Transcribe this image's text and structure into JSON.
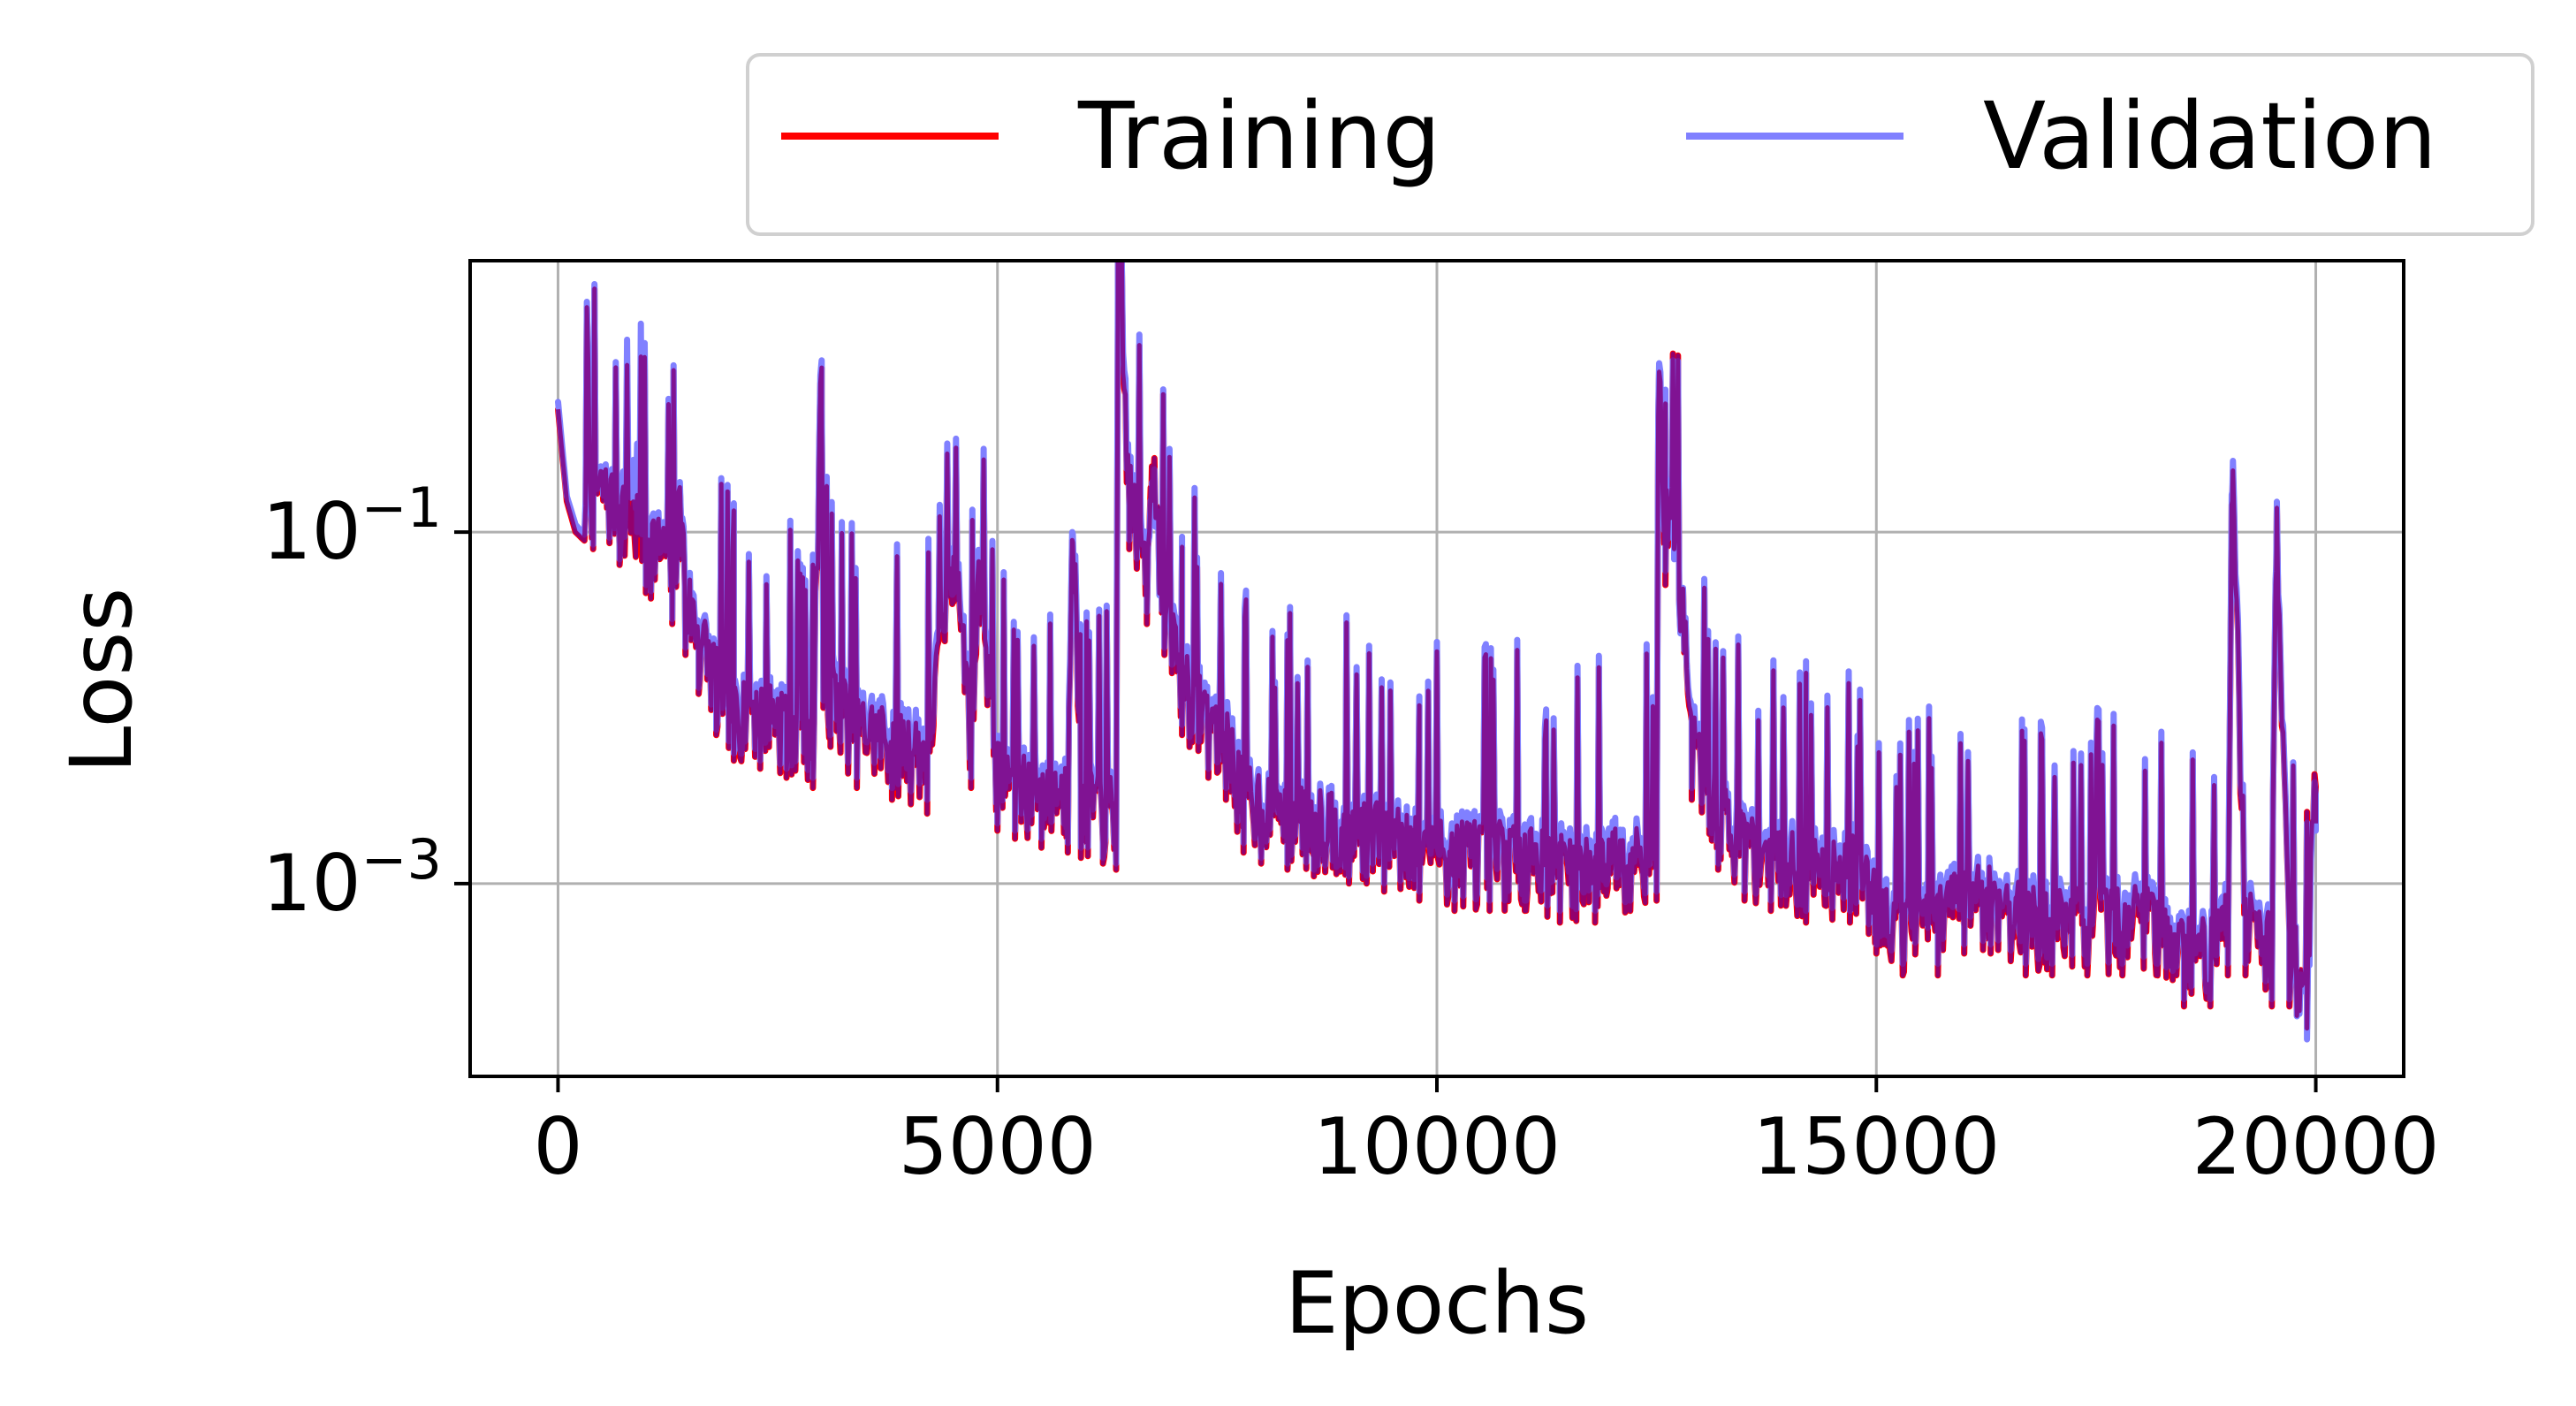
{
  "chart_data": {
    "type": "line",
    "xlabel": "Epochs",
    "ylabel": "Loss",
    "x_ticks": [
      0,
      5000,
      10000,
      15000,
      20000
    ],
    "x_tick_labels": [
      "0",
      "5000",
      "10000",
      "15000",
      "20000"
    ],
    "xlim": [
      -1000,
      21000
    ],
    "y_scale": "log",
    "ylim": [
      8e-05,
      3.5
    ],
    "y_ticks": [
      0.1,
      0.001
    ],
    "y_tick_labels": [
      {
        "base": "10",
        "exp": "−1"
      },
      {
        "base": "10",
        "exp": "−3"
      }
    ],
    "grid": true,
    "legend": {
      "placement": "top-right, outside plot",
      "columns": 2
    },
    "series": [
      {
        "name": "Training",
        "color": "#ff0000",
        "x": [
          0,
          100,
          200,
          400,
          700,
          1000,
          1300,
          1400,
          1450,
          1600,
          1800,
          2000,
          2300,
          2600,
          2900,
          3000,
          3020,
          3100,
          3400,
          3800,
          4200,
          4500,
          4700,
          4800,
          5000,
          5200,
          5500,
          5800,
          5850,
          5950,
          6200,
          6350,
          6370,
          6500,
          6700,
          6750,
          6900,
          7100,
          7400,
          7600,
          7800,
          8000,
          8300,
          8600,
          9000,
          9400,
          9800,
          10200,
          10600,
          11000,
          11400,
          11800,
          12200,
          12500,
          12520,
          12600,
          12700,
          12900,
          13200,
          13500,
          13800,
          14200,
          14700,
          15000,
          15300,
          15700,
          16000,
          16300,
          16700,
          17000,
          17400,
          17800,
          18200,
          18500,
          18800,
          19000,
          19050,
          19200,
          19500,
          19550,
          19700,
          19900,
          20000
        ],
        "y": [
          0.5,
          0.15,
          0.1,
          0.08,
          0.065,
          0.045,
          0.03,
          0.07,
          0.02,
          0.012,
          0.007,
          0.005,
          0.0045,
          0.004,
          0.0035,
          0.5,
          0.01,
          0.006,
          0.0035,
          0.003,
          0.0025,
          0.04,
          0.0035,
          0.03,
          0.002,
          0.0018,
          0.0016,
          0.0015,
          0.09,
          0.0014,
          0.0013,
          0.0012,
          1.5,
          0.08,
          0.03,
          0.15,
          0.02,
          0.007,
          0.004,
          0.003,
          0.0015,
          0.0013,
          0.0012,
          0.0011,
          0.001,
          0.0009,
          0.0008,
          0.0007,
          0.0007,
          0.0007,
          0.0006,
          0.0006,
          0.0007,
          0.0008,
          0.45,
          0.05,
          0.08,
          0.003,
          0.0012,
          0.0008,
          0.0007,
          0.0006,
          0.0006,
          0.0004,
          0.0003,
          0.0003,
          0.0004,
          0.0004,
          0.0003,
          0.0003,
          0.0003,
          0.0003,
          0.0003,
          0.0002,
          0.0002,
          0.0003,
          0.15,
          0.0003,
          0.0002,
          0.06,
          0.0002,
          0.00015,
          0.0022
        ]
      },
      {
        "name": "Validation",
        "color": "#8080ff",
        "x": [
          0,
          100,
          200,
          400,
          700,
          900,
          1000,
          1300,
          1400,
          1450,
          1600,
          1800,
          2000,
          2300,
          2600,
          2900,
          3000,
          3020,
          3100,
          3400,
          3800,
          4200,
          4500,
          4700,
          4800,
          5000,
          5200,
          5500,
          5800,
          5850,
          5950,
          6200,
          6350,
          6370,
          6500,
          6700,
          6750,
          6900,
          7100,
          7400,
          7600,
          7800,
          8000,
          8300,
          8600,
          9000,
          9400,
          9800,
          10200,
          10600,
          11000,
          11400,
          11800,
          12200,
          12500,
          12520,
          12600,
          12700,
          12900,
          13200,
          13500,
          13800,
          14200,
          14700,
          15000,
          15300,
          15700,
          16000,
          16300,
          16700,
          17000,
          17400,
          17800,
          18200,
          18500,
          18800,
          19000,
          19050,
          19200,
          19500,
          19550,
          19700,
          19900,
          20000
        ],
        "y": [
          0.55,
          0.16,
          0.11,
          0.085,
          0.07,
          0.1,
          0.05,
          0.032,
          0.075,
          0.022,
          0.013,
          0.0075,
          0.0055,
          0.005,
          0.0045,
          0.004,
          0.55,
          0.011,
          0.007,
          0.004,
          0.0035,
          0.003,
          0.045,
          0.004,
          0.035,
          0.0022,
          0.002,
          0.0018,
          0.0017,
          0.1,
          0.0016,
          0.0014,
          0.0013,
          2.2,
          0.09,
          0.035,
          0.12,
          0.022,
          0.008,
          0.0045,
          0.0035,
          0.0017,
          0.0014,
          0.0013,
          0.0012,
          0.0011,
          0.001,
          0.0009,
          0.0008,
          0.0008,
          0.0008,
          0.0007,
          0.0007,
          0.0008,
          0.0009,
          0.5,
          0.06,
          0.07,
          0.0035,
          0.0013,
          0.0009,
          0.0008,
          0.0007,
          0.0007,
          0.00045,
          0.00035,
          0.00035,
          0.00045,
          0.00045,
          0.00035,
          0.00035,
          0.00035,
          0.00035,
          0.00035,
          0.00022,
          0.00022,
          0.00035,
          0.17,
          0.00035,
          0.00022,
          0.065,
          0.00022,
          0.00013,
          0.002
        ]
      }
    ]
  }
}
